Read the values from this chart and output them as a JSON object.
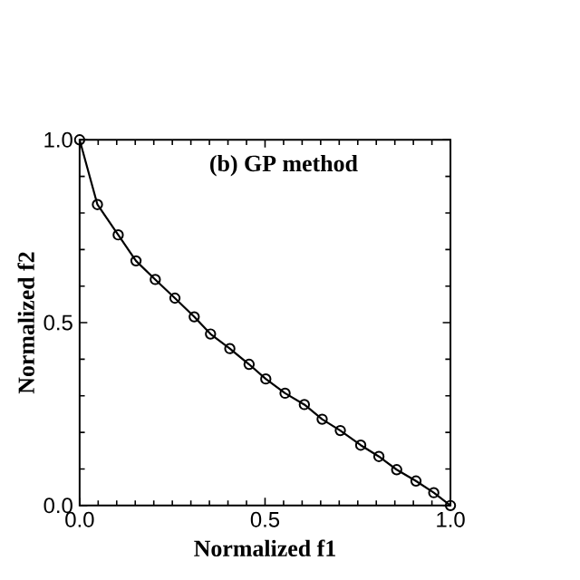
{
  "chart_data": {
    "type": "line",
    "title": "(b) GP method",
    "xlabel": "Normalized f1",
    "ylabel": "Normalized f2",
    "x": [
      0,
      0.048,
      0.104,
      0.152,
      0.204,
      0.257,
      0.309,
      0.353,
      0.405,
      0.457,
      0.502,
      0.554,
      0.606,
      0.654,
      0.703,
      0.758,
      0.807,
      0.855,
      0.907,
      0.955,
      1.0
    ],
    "series": [
      {
        "color": "#000000",
        "values": [
          1.0,
          0.823,
          0.74,
          0.669,
          0.618,
          0.567,
          0.516,
          0.469,
          0.429,
          0.386,
          0.346,
          0.307,
          0.276,
          0.236,
          0.205,
          0.165,
          0.134,
          0.098,
          0.067,
          0.035,
          0.0
        ]
      }
    ],
    "marker": "circle",
    "line_style": "solid",
    "xlim": [
      0,
      1
    ],
    "ylim": [
      0,
      1
    ],
    "xticks": [
      {
        "value": 0,
        "label": "0.0"
      },
      0.5,
      {
        "value": 1,
        "label": "1.0"
      }
    ],
    "yticks": [
      {
        "value": 0,
        "label": "0.0"
      },
      0.5,
      {
        "value": 1,
        "label": "1.0"
      }
    ]
  }
}
